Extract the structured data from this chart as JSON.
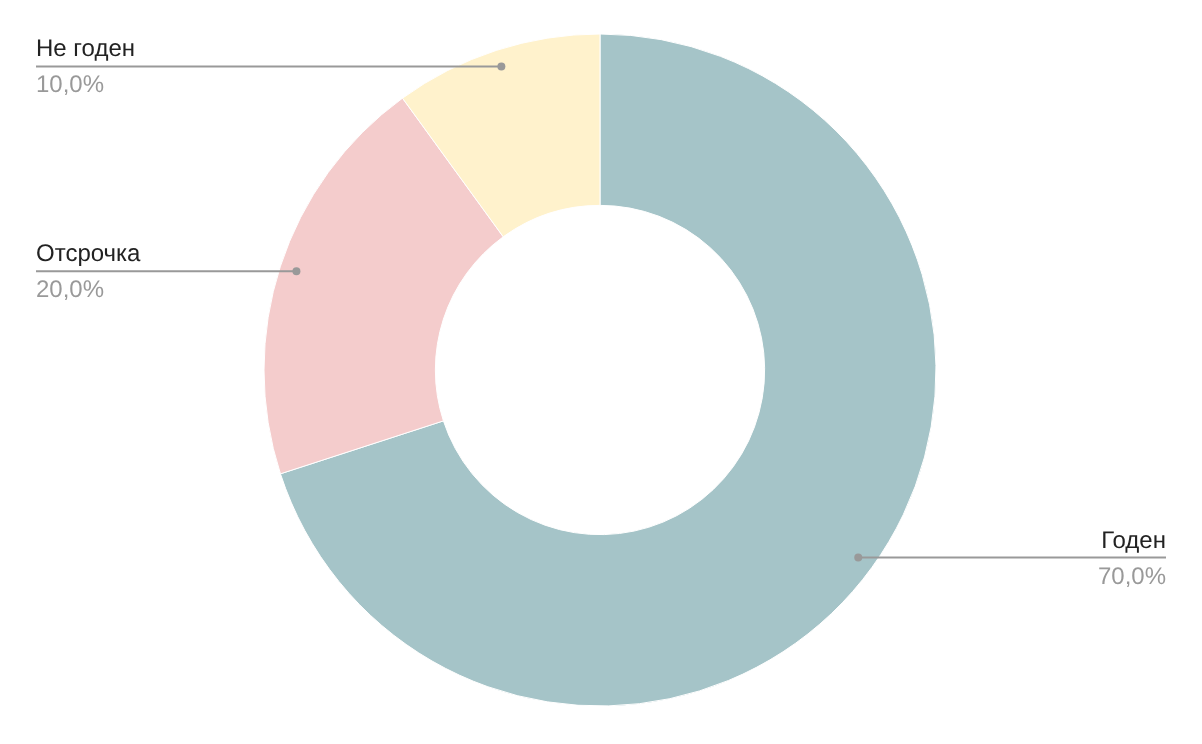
{
  "chart_data": {
    "type": "donut",
    "categories": [
      "Годен",
      "Отсрочка",
      "Не годен"
    ],
    "values": [
      70,
      20,
      10
    ],
    "colors": [
      "#a5c4c8",
      "#f4cccc",
      "#fff2cc"
    ],
    "value_labels": [
      "70,0%",
      "20,0%",
      "10,0%"
    ]
  }
}
